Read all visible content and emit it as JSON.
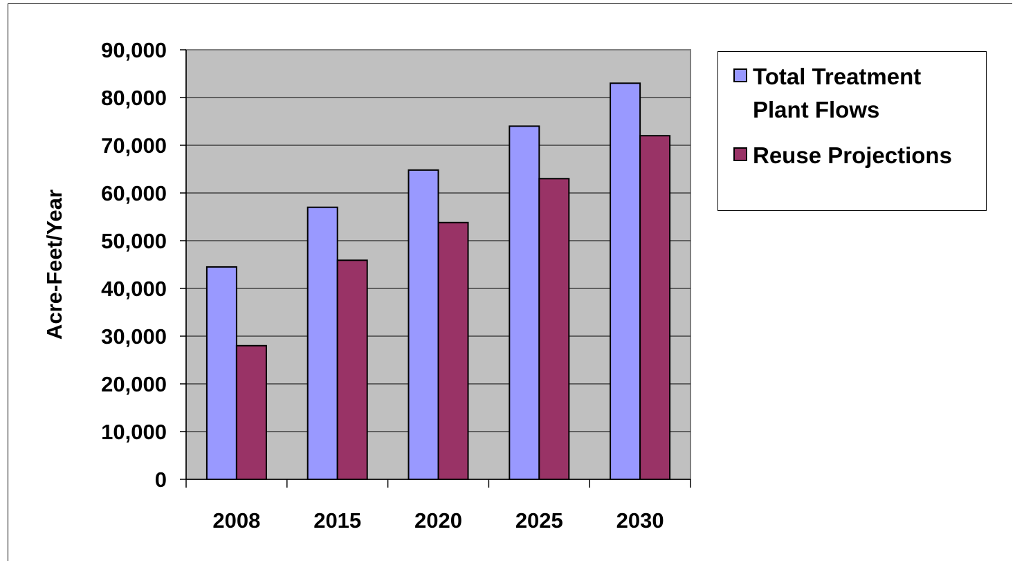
{
  "chart_data": {
    "type": "bar",
    "title": "",
    "xlabel": "",
    "ylabel": "Acre-Feet/Year",
    "ylim": [
      0,
      90000
    ],
    "yticks": [
      "0",
      "10,000",
      "20,000",
      "30,000",
      "40,000",
      "50,000",
      "60,000",
      "70,000",
      "80,000",
      "90,000"
    ],
    "categories": [
      "2008",
      "2015",
      "2020",
      "2025",
      "2030"
    ],
    "series": [
      {
        "name": "Total Treatment Plant Flows",
        "color": "#9999FF",
        "values": [
          44500,
          57000,
          64800,
          74000,
          83000
        ]
      },
      {
        "name": "Reuse Projections",
        "color": "#993366",
        "values": [
          28000,
          45900,
          53800,
          63000,
          72000
        ]
      }
    ],
    "grid": true,
    "plot_background": "#C0C0C0",
    "legend_position": "right"
  }
}
